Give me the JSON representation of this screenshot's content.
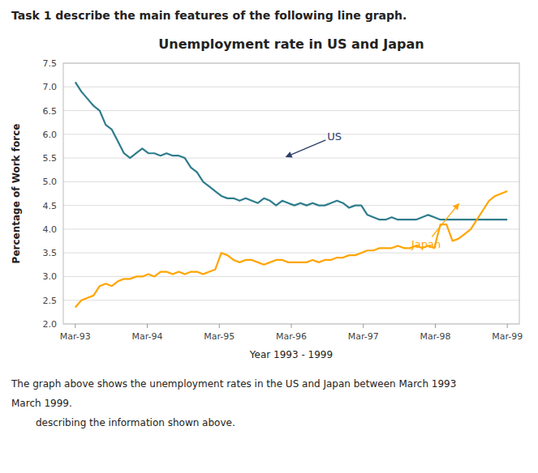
{
  "chart_data": {
    "type": "line",
    "title": "Unemployment rate in US and Japan",
    "header": "Task 1    describe the main features of the following line graph.",
    "footer": [
      "The graph above shows the unemployment rates in the US and Japan between March 1993",
      "March 1999.",
      "describing the information shown above."
    ],
    "x_label": "Year 1993 - 1999",
    "y_label": "Percentage of Work force",
    "x": [
      0,
      1.0141,
      2.0282,
      3.0423,
      4.0563,
      5.0704,
      6.0845,
      7.0986,
      8.1127,
      9.1268,
      10.1408,
      11.1549,
      12.169,
      13.1831,
      14.1972,
      15.2113,
      16.2254,
      17.2394,
      18.2535,
      19.2676,
      20.2817,
      21.2958,
      22.3099,
      23.3239,
      24.338,
      25.3521,
      26.3662,
      27.3803,
      28.3944,
      29.4085,
      30.4225,
      31.4366,
      32.4507,
      33.4648,
      34.4789,
      35.493,
      36.507,
      37.5211,
      38.5352,
      39.5493,
      40.5634,
      41.5775,
      42.5915,
      43.6056,
      44.6197,
      45.6338,
      46.6479,
      47.662,
      48.6761,
      49.6901,
      50.7042,
      51.7183,
      52.7324,
      53.7465,
      54.7606,
      55.7746,
      56.7887,
      57.8028,
      58.8169,
      59.831,
      60.8451,
      61.8592,
      62.8732,
      63.8873,
      64.9014,
      65.9155,
      66.9296,
      67.9437,
      68.9577,
      69.9718,
      70.9859,
      72
    ],
    "series": [
      {
        "name": "US",
        "color": "#2E7D8C",
        "values": [
          7.1,
          6.9,
          6.75,
          6.6,
          6.5,
          6.2,
          6.1,
          5.85,
          5.6,
          5.5,
          5.6,
          5.7,
          5.6,
          5.6,
          5.55,
          5.6,
          5.55,
          5.55,
          5.5,
          5.3,
          5.2,
          5.0,
          4.9,
          4.8,
          4.7,
          4.65,
          4.65,
          4.6,
          4.65,
          4.6,
          4.55,
          4.65,
          4.6,
          4.5,
          4.6,
          4.55,
          4.5,
          4.55,
          4.5,
          4.55,
          4.5,
          4.5,
          4.55,
          4.6,
          4.55,
          4.45,
          4.5,
          4.5,
          4.3,
          4.25,
          4.2,
          4.2,
          4.25,
          4.2,
          4.2,
          4.2,
          4.2,
          4.25,
          4.3,
          4.25,
          4.2,
          4.2,
          4.2,
          4.2,
          4.2,
          4.2,
          4.2,
          4.2,
          4.2,
          4.2,
          4.2,
          4.2
        ]
      },
      {
        "name": "Japan",
        "color": "#FFA500",
        "values": [
          2.35,
          2.5,
          2.55,
          2.6,
          2.8,
          2.85,
          2.8,
          2.9,
          2.95,
          2.95,
          3.0,
          3.0,
          3.05,
          3.0,
          3.1,
          3.1,
          3.05,
          3.1,
          3.05,
          3.1,
          3.1,
          3.05,
          3.1,
          3.15,
          3.5,
          3.45,
          3.35,
          3.3,
          3.35,
          3.35,
          3.3,
          3.25,
          3.3,
          3.35,
          3.35,
          3.3,
          3.3,
          3.3,
          3.3,
          3.35,
          3.3,
          3.35,
          3.35,
          3.4,
          3.4,
          3.45,
          3.45,
          3.5,
          3.55,
          3.55,
          3.6,
          3.6,
          3.6,
          3.65,
          3.6,
          3.6,
          3.65,
          3.6,
          3.65,
          3.6,
          4.1,
          4.1,
          3.75,
          3.8,
          3.9,
          4.0,
          4.2,
          4.4,
          4.6,
          4.7,
          4.75,
          4.8
        ]
      }
    ],
    "annotations": [
      {
        "text": "US",
        "x": 42,
        "y": 5.88,
        "arrow_x": 35,
        "arrow_y": 5.52,
        "color": "#2C3E6B"
      },
      {
        "text": "Japan",
        "x": 56,
        "y": 3.6,
        "arrow_x": 64,
        "arrow_y": 4.55,
        "color": "#FFA500"
      }
    ],
    "xlim": [
      -2,
      74
    ],
    "xticks": [
      {
        "value": 0,
        "label": "Mar-93"
      },
      {
        "value": 12,
        "label": "Mar-94"
      },
      {
        "value": 24,
        "label": "Mar-95"
      },
      {
        "value": 36,
        "label": "Mar-96"
      },
      {
        "value": 48,
        "label": "Mar-97"
      },
      {
        "value": 60,
        "label": "Mar-98"
      },
      {
        "value": 72,
        "label": "Mar-99"
      }
    ],
    "ylim": [
      2.0,
      7.5
    ],
    "yticks": [
      {
        "value": 2.0,
        "label": "2.0"
      },
      2.5,
      {
        "value": 3.0,
        "label": "3.0"
      },
      3.5,
      {
        "value": 4.0,
        "label": "4.0"
      },
      4.5,
      {
        "value": 5.0,
        "label": "5.0"
      },
      5.5,
      {
        "value": 6.0,
        "label": "6.0"
      },
      6.5,
      {
        "value": 7.0,
        "label": "7.0"
      },
      7.5
    ],
    "grid": true
  }
}
